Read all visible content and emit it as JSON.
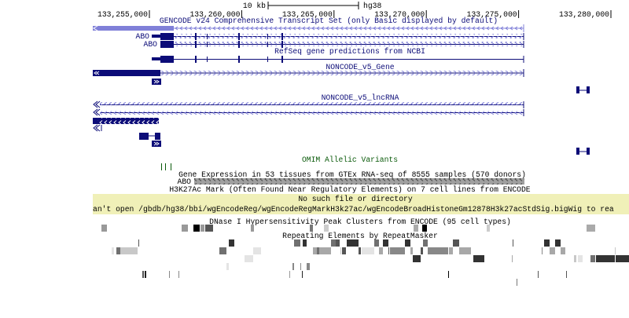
{
  "ruler": {
    "scale_label": "10 kb",
    "assembly": "hg38",
    "positions": [
      "133,255,000",
      "133,260,000",
      "133,265,000",
      "133,270,000",
      "133,275,000",
      "133,280,000"
    ]
  },
  "tracks": {
    "gencode": {
      "title": "GENCODE v24 Comprehensive Transcript Set (only Basic displayed by default)",
      "labels": [
        "ABO",
        "ABO"
      ]
    },
    "refseq": {
      "title": "RefSeq gene predictions from NCBI"
    },
    "noncode_gene": {
      "title": "NONCODE_v5_Gene"
    },
    "noncode_lncrna": {
      "title": "NONCODE_v5_lncRNA"
    },
    "omim": {
      "title": "OMIM Allelic Variants"
    },
    "gtex": {
      "title": "Gene Expression in 53 tissues from GTEx RNA-seq of 8555 samples (570 donors)",
      "gene_label": "ABO"
    },
    "h3k27ac": {
      "title": "H3K27Ac Mark (Often Found Near Regulatory Elements) on 7 cell lines from ENCODE",
      "error_line1": "No such file or directory",
      "error_line2": "an't open /gbdb/hg38/bbi/wgEncodeReg/wgEncodeRegMarkH3k27ac/wgEncodeBroadHistoneGm12878H3k27acStdSig.bigWig to rea"
    },
    "dnase": {
      "title": "DNase I Hypersensitivity Peak Clusters from ENCODE (95 cell types)"
    },
    "repeatmasker": {
      "title": "Repeating Elements by RepeatMasker"
    }
  },
  "colors": {
    "gene": "#0c0c78",
    "gencode_light": "#8080d8",
    "omim": "#0a5a0a",
    "gtex_bar": "#a0a0a0",
    "error_bg": "#f0f0b8"
  }
}
